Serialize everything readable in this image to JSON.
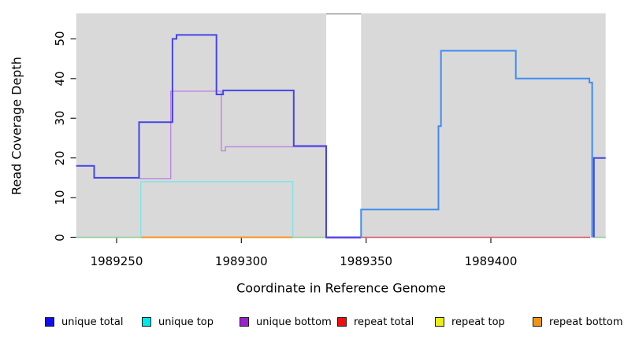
{
  "chart_data": {
    "type": "line",
    "subtype": "step-coverage-plot",
    "xlabel": "Coordinate in Reference Genome",
    "ylabel": "Read Coverage Depth",
    "x_ticks": [
      1989250,
      1989300,
      1989350,
      1989400
    ],
    "x_tick_labels": [
      "1989250",
      "1989300",
      "1989350",
      "1989400"
    ],
    "y_ticks": [
      0,
      10,
      20,
      30,
      40,
      50
    ],
    "y_tick_labels": [
      "0",
      "10",
      "20",
      "30",
      "40",
      "50"
    ],
    "x_range": [
      1989233.8,
      1989446
    ],
    "y_range": [
      0,
      56.5
    ],
    "grid": false,
    "background_color": "#d9d9d9",
    "masked_region": {
      "start": 1989334,
      "end": 1989348,
      "note": "white uncovered band",
      "top_border_color": "#9a9a9a"
    },
    "legend_position": "bottom",
    "legend": [
      {
        "label": "unique total",
        "color": "#0f0fee"
      },
      {
        "label": "unique top",
        "color": "#00e6ea"
      },
      {
        "label": "unique bottom",
        "color": "#9b23cf"
      },
      {
        "label": "repeat total",
        "color": "#ee0f0f"
      },
      {
        "label": "repeat top",
        "color": "#eded1c"
      },
      {
        "label": "repeat bottom",
        "color": "#ee9512"
      }
    ],
    "series": [
      {
        "name": "zero baseline overlap",
        "color": "#8fce96",
        "width": 1.5,
        "segments": [
          [
            [
              1989233.8,
              0
            ],
            [
              1989259.7,
              0
            ]
          ],
          [
            [
              1989320.6,
              0
            ],
            [
              1989334,
              0
            ]
          ],
          [
            [
              1989441.3,
              0
            ],
            [
              1989446,
              0
            ]
          ]
        ]
      },
      {
        "name": "repeat bottom",
        "color": "#f69322",
        "width": 2,
        "segments": [
          [
            [
              1989259.7,
              0
            ],
            [
              1989320.6,
              0
            ]
          ]
        ]
      },
      {
        "name": "repeat total",
        "color": "#dd5767",
        "width": 1.5,
        "segments": [
          [
            [
              1989348,
              0
            ],
            [
              1989439.8,
              0
            ]
          ]
        ]
      },
      {
        "name": "unique top",
        "color": "#80e6e2",
        "width": 1.5,
        "segments": [
          [
            [
              1989259.7,
              0
            ],
            [
              1989259.7,
              14
            ],
            [
              1989320.6,
              14
            ],
            [
              1989320.6,
              0
            ]
          ]
        ]
      },
      {
        "name": "unique bottom",
        "color": "#c08ade",
        "width": 1.5,
        "dy": 1,
        "segments": [
          [
            [
              1989259,
              15
            ],
            [
              1989271.7,
              15
            ],
            [
              1989271.7,
              37
            ],
            [
              1989292,
              37
            ],
            [
              1989292,
              22
            ],
            [
              1989293.6,
              22
            ],
            [
              1989293.6,
              23
            ],
            [
              1989334,
              23
            ],
            [
              1989334,
              0
            ],
            [
              1989348,
              0
            ]
          ]
        ]
      },
      {
        "name": "unique total",
        "color": "#4444e8",
        "width": 2,
        "segments": [
          [
            [
              1989233.8,
              18
            ],
            [
              1989241,
              18
            ],
            [
              1989241,
              15
            ],
            [
              1989259,
              15
            ],
            [
              1989259,
              29
            ],
            [
              1989272.4,
              29
            ],
            [
              1989272.4,
              50
            ],
            [
              1989274,
              50
            ],
            [
              1989274,
              51
            ],
            [
              1989290,
              51
            ],
            [
              1989290,
              36
            ],
            [
              1989292.7,
              36
            ],
            [
              1989292.7,
              37
            ],
            [
              1989321,
              37
            ],
            [
              1989321,
              23
            ],
            [
              1989334,
              23
            ],
            [
              1989334,
              0
            ],
            [
              1989348,
              0
            ]
          ],
          [
            [
              1989441.3,
              0
            ],
            [
              1989441.3,
              20
            ],
            [
              1989446,
              20
            ]
          ]
        ]
      },
      {
        "name": "unique total right",
        "color": "#3d8df2",
        "width": 2,
        "segments": [
          [
            [
              1989348,
              0
            ],
            [
              1989348,
              7
            ],
            [
              1989379,
              7
            ],
            [
              1989379,
              28
            ],
            [
              1989380,
              28
            ],
            [
              1989380,
              47
            ],
            [
              1989410,
              47
            ],
            [
              1989410,
              40
            ],
            [
              1989439.5,
              40
            ],
            [
              1989439.5,
              39
            ],
            [
              1989440.6,
              39
            ],
            [
              1989440.6,
              0
            ]
          ]
        ]
      }
    ]
  }
}
